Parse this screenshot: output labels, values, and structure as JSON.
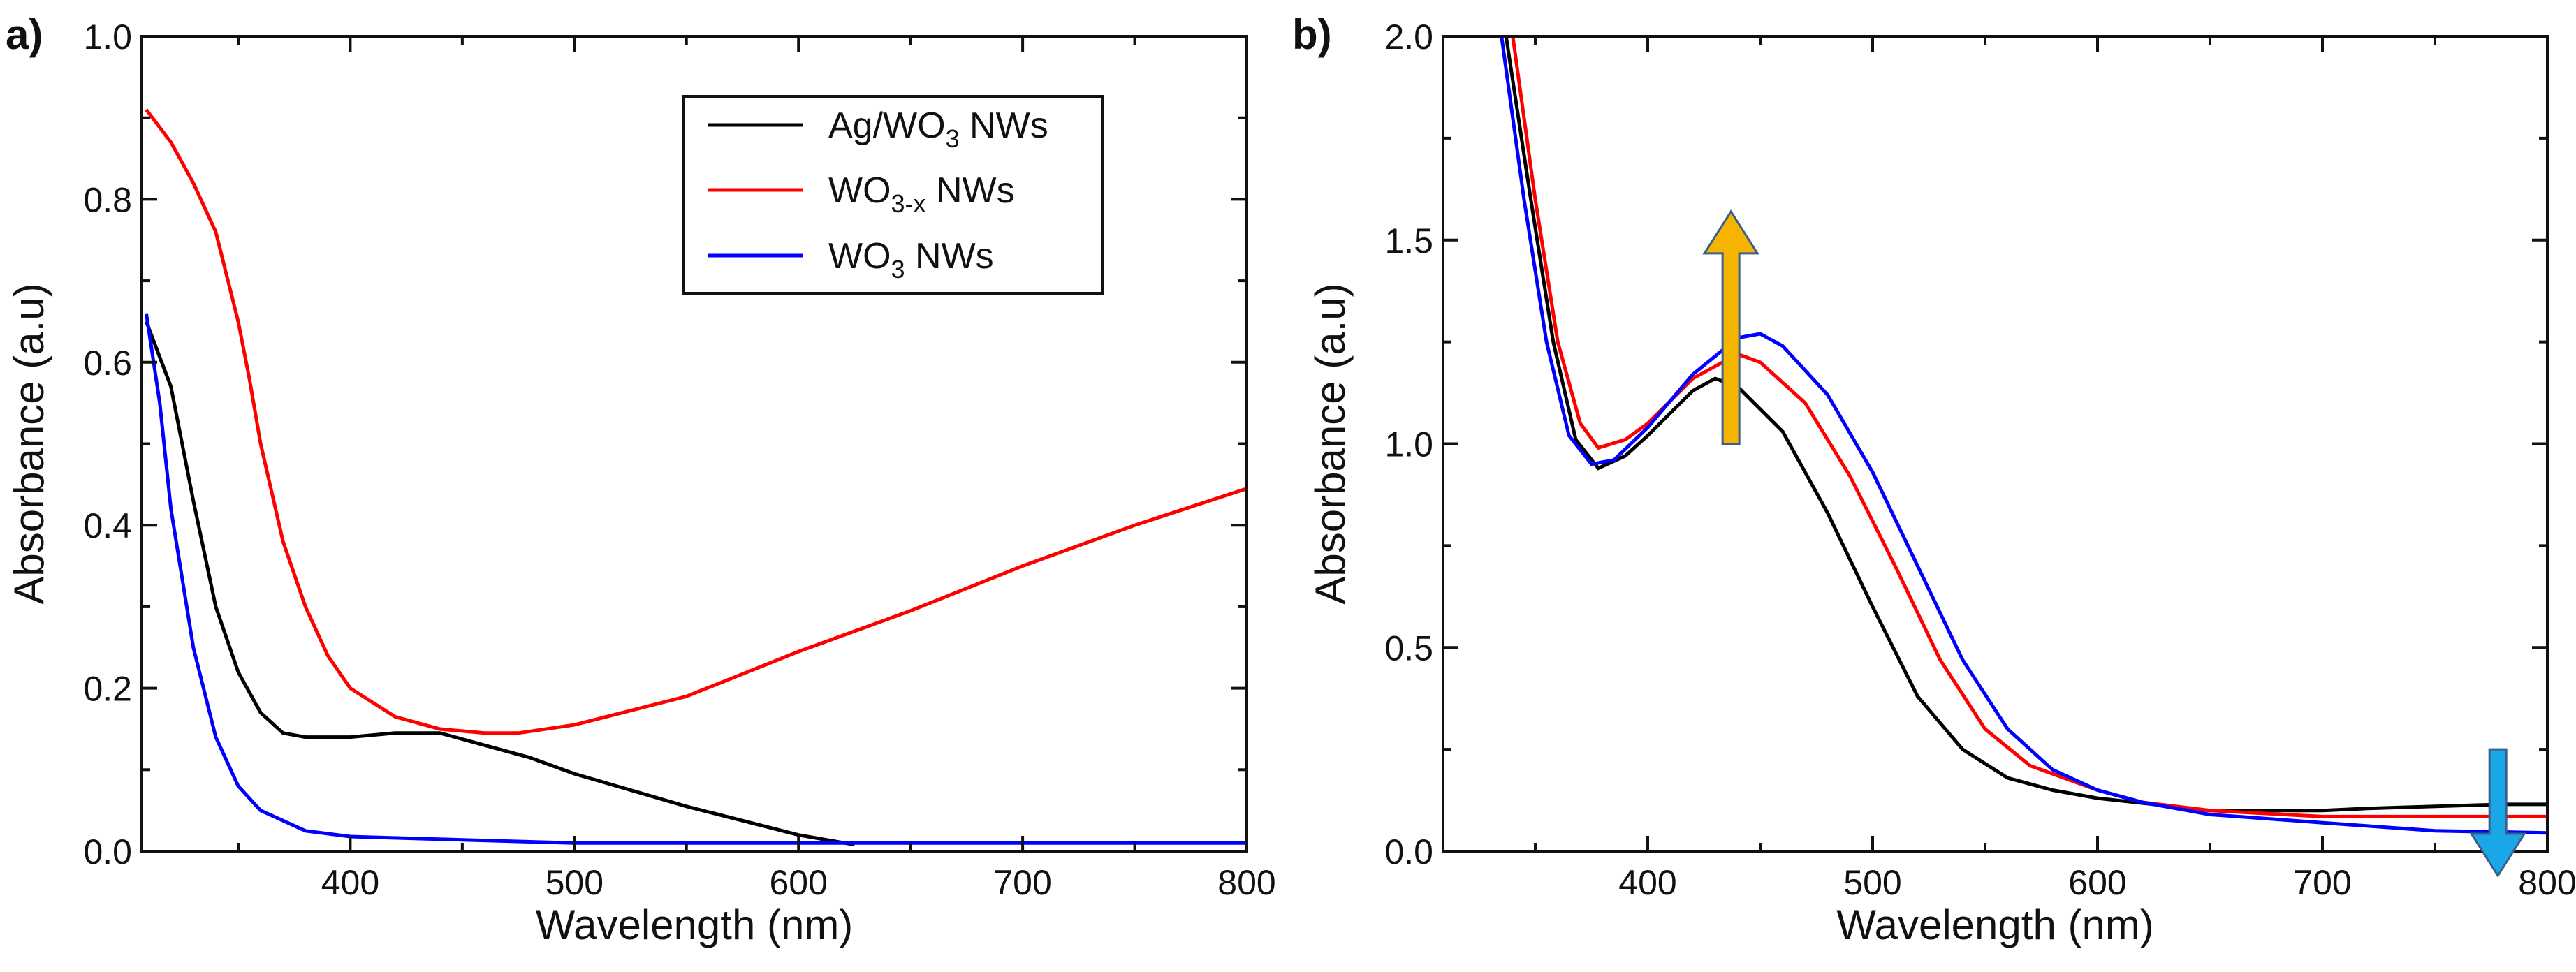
{
  "chart_data": [
    {
      "type": "line",
      "panel_label": "a)",
      "xlabel": "Wavelength (nm)",
      "ylabel": "Absorbance (a.u)",
      "xlim": [
        307,
        800
      ],
      "ylim": [
        0,
        1.0
      ],
      "xticks": [
        400,
        500,
        600,
        700,
        800
      ],
      "xtick_labels": [
        "400",
        "500",
        "600",
        "700",
        "800"
      ],
      "yticks": [
        0,
        0.2,
        0.4,
        0.6,
        0.8,
        1.0
      ],
      "ytick_labels": [
        "0.0",
        "0.2",
        "0.4",
        "0.6",
        "0.8",
        "1.0"
      ],
      "legend_position": "top-right",
      "series": [
        {
          "name": "Ag/WO3 NWs",
          "label_parts": {
            "pre": "Ag/WO",
            "sub": "3",
            "post": " NWs"
          },
          "color": "#000000",
          "x": [
            309,
            320,
            330,
            340,
            350,
            360,
            370,
            380,
            400,
            420,
            440,
            460,
            480,
            500,
            550,
            600,
            625
          ],
          "y": [
            0.65,
            0.57,
            0.43,
            0.3,
            0.22,
            0.17,
            0.145,
            0.14,
            0.14,
            0.145,
            0.145,
            0.13,
            0.115,
            0.095,
            0.055,
            0.02,
            0.008
          ]
        },
        {
          "name": "WO3-x NWs",
          "label_parts": {
            "pre": "WO",
            "sub": "3-x",
            "post": " NWs"
          },
          "color": "#ff0000",
          "x": [
            309,
            320,
            330,
            340,
            350,
            355,
            360,
            370,
            380,
            390,
            400,
            420,
            440,
            460,
            475,
            500,
            550,
            600,
            650,
            700,
            750,
            800
          ],
          "y": [
            0.91,
            0.87,
            0.82,
            0.76,
            0.65,
            0.58,
            0.5,
            0.38,
            0.3,
            0.24,
            0.2,
            0.165,
            0.15,
            0.145,
            0.145,
            0.155,
            0.19,
            0.245,
            0.295,
            0.35,
            0.4,
            0.445
          ]
        },
        {
          "name": "WO3 NWs",
          "label_parts": {
            "pre": "WO",
            "sub": "3",
            "post": " NWs"
          },
          "color": "#0000ff",
          "x": [
            309,
            315,
            320,
            330,
            340,
            350,
            360,
            380,
            400,
            450,
            500,
            600,
            700,
            800
          ],
          "y": [
            0.66,
            0.55,
            0.42,
            0.25,
            0.14,
            0.08,
            0.05,
            0.025,
            0.018,
            0.014,
            0.01,
            0.01,
            0.01,
            0.01
          ]
        }
      ]
    },
    {
      "type": "line",
      "panel_label": "b)",
      "xlabel": "Wavelength (nm)",
      "ylabel": "Absorbance (a.u)",
      "xlim": [
        309,
        800
      ],
      "ylim": [
        0,
        2.0
      ],
      "xticks": [
        400,
        500,
        600,
        700,
        800
      ],
      "xtick_labels": [
        "400",
        "500",
        "600",
        "700",
        "800"
      ],
      "yticks": [
        0,
        0.5,
        1.0,
        1.5,
        2.0
      ],
      "ytick_labels": [
        "0.0",
        "0.5",
        "1.0",
        "1.5",
        "2.0"
      ],
      "series": [
        {
          "name": "black",
          "color": "#000000",
          "x": [
            337,
            348,
            358,
            368,
            378,
            390,
            400,
            420,
            430,
            440,
            460,
            480,
            500,
            520,
            540,
            560,
            580,
            600,
            650,
            700,
            720,
            780,
            800
          ],
          "y": [
            2.0,
            1.6,
            1.25,
            1.01,
            0.94,
            0.97,
            1.02,
            1.13,
            1.16,
            1.14,
            1.03,
            0.83,
            0.6,
            0.38,
            0.25,
            0.18,
            0.15,
            0.13,
            0.1,
            0.1,
            0.105,
            0.115,
            0.115
          ]
        },
        {
          "name": "red",
          "color": "#ff0000",
          "x": [
            340,
            350,
            360,
            370,
            378,
            390,
            400,
            420,
            440,
            450,
            470,
            490,
            510,
            530,
            550,
            570,
            600,
            620,
            650,
            700,
            800
          ],
          "y": [
            2.0,
            1.6,
            1.25,
            1.05,
            0.99,
            1.01,
            1.05,
            1.16,
            1.22,
            1.2,
            1.1,
            0.92,
            0.7,
            0.47,
            0.3,
            0.21,
            0.15,
            0.12,
            0.1,
            0.085,
            0.085
          ]
        },
        {
          "name": "blue",
          "color": "#0000ff",
          "x": [
            335,
            345,
            355,
            365,
            375,
            385,
            400,
            420,
            440,
            450,
            460,
            480,
            500,
            520,
            540,
            560,
            580,
            600,
            620,
            650,
            700,
            750,
            800
          ],
          "y": [
            2.0,
            1.6,
            1.25,
            1.02,
            0.95,
            0.96,
            1.04,
            1.17,
            1.26,
            1.27,
            1.24,
            1.12,
            0.93,
            0.7,
            0.47,
            0.3,
            0.2,
            0.15,
            0.12,
            0.09,
            0.07,
            0.05,
            0.045
          ]
        }
      ],
      "annotations": [
        {
          "type": "arrow-up",
          "x": 437,
          "y_from": 1.0,
          "y_to": 1.57,
          "color": "#f5b400"
        },
        {
          "type": "arrow-down",
          "x": 778,
          "y_from": 0.25,
          "y_to": -0.06,
          "color": "#1aa7e8"
        }
      ]
    }
  ]
}
